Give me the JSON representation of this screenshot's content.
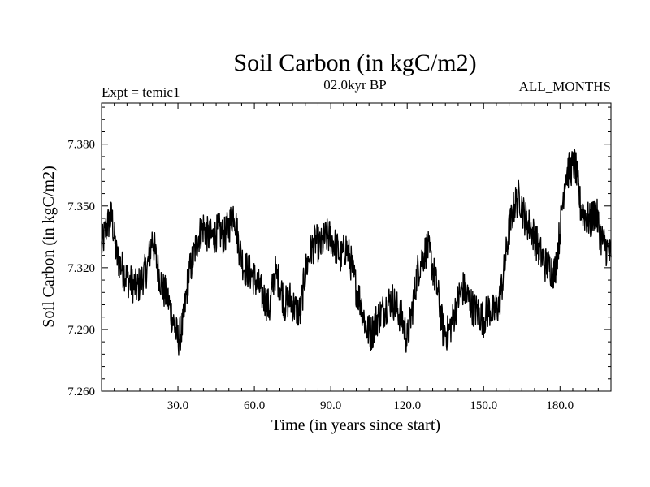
{
  "chart_data": {
    "type": "line",
    "title": "Soil Carbon (in kgC/m2)",
    "subtitle_left": "Expt = temic1",
    "subtitle_center": "02.0kyr BP",
    "subtitle_right": "ALL_MONTHS",
    "xlabel": "Time (in years since start)",
    "ylabel": "Soil Carbon (in kgC/m2)",
    "xlim": [
      0,
      200
    ],
    "ylim": [
      7.26,
      7.4
    ],
    "xticks": [
      30,
      60,
      90,
      120,
      150,
      180
    ],
    "xtick_labels": [
      "30.0",
      "60.0",
      "90.0",
      "120.0",
      "150.0",
      "180.0"
    ],
    "yticks": [
      7.26,
      7.29,
      7.32,
      7.35,
      7.38
    ],
    "ytick_labels": [
      "7.260",
      "7.290",
      "7.320",
      "7.350",
      "7.380"
    ],
    "grid": false,
    "line_color": "#000000",
    "series": [
      {
        "x": [
          0,
          2,
          4,
          6,
          8,
          10,
          12,
          14,
          16,
          18,
          20,
          22,
          24,
          26,
          28,
          30,
          32,
          34,
          36,
          38,
          40,
          42,
          44,
          46,
          48,
          50,
          52,
          54,
          56,
          58,
          60,
          62,
          64,
          66,
          68,
          70,
          72,
          74,
          76,
          78,
          80,
          82,
          84,
          86,
          88,
          90,
          92,
          94,
          96,
          98,
          100,
          102,
          104,
          106,
          108,
          110,
          112,
          114,
          116,
          118,
          120,
          122,
          124,
          126,
          128,
          130,
          132,
          134,
          136,
          138,
          140,
          142,
          144,
          146,
          148,
          150,
          152,
          154,
          156,
          158,
          160,
          162,
          164,
          166,
          168,
          170,
          172,
          174,
          176,
          178,
          180,
          182,
          184,
          186,
          188,
          190,
          192,
          194,
          196,
          198,
          200
        ],
        "values": [
          7.33,
          7.34,
          7.345,
          7.325,
          7.32,
          7.315,
          7.312,
          7.31,
          7.315,
          7.32,
          7.335,
          7.32,
          7.31,
          7.305,
          7.295,
          7.285,
          7.292,
          7.315,
          7.325,
          7.335,
          7.34,
          7.335,
          7.335,
          7.338,
          7.335,
          7.34,
          7.348,
          7.33,
          7.32,
          7.318,
          7.315,
          7.31,
          7.305,
          7.3,
          7.318,
          7.312,
          7.302,
          7.305,
          7.3,
          7.298,
          7.318,
          7.328,
          7.333,
          7.33,
          7.335,
          7.335,
          7.33,
          7.325,
          7.33,
          7.322,
          7.31,
          7.302,
          7.29,
          7.288,
          7.295,
          7.298,
          7.302,
          7.305,
          7.3,
          7.295,
          7.285,
          7.3,
          7.318,
          7.325,
          7.33,
          7.32,
          7.308,
          7.29,
          7.288,
          7.295,
          7.305,
          7.31,
          7.305,
          7.3,
          7.298,
          7.295,
          7.3,
          7.298,
          7.302,
          7.318,
          7.338,
          7.35,
          7.355,
          7.345,
          7.34,
          7.335,
          7.328,
          7.322,
          7.32,
          7.318,
          7.338,
          7.365,
          7.368,
          7.37,
          7.35,
          7.345,
          7.342,
          7.348,
          7.335,
          7.33,
          7.325
        ]
      }
    ]
  }
}
